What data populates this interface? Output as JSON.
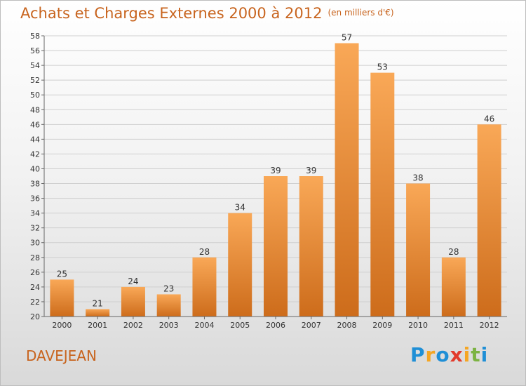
{
  "header": {
    "title": "Achats et Charges Externes 2000 à 2012",
    "subtitle": "(en milliers d'€)"
  },
  "commune": "DAVEJEAN",
  "logo": {
    "text": "Proxiti",
    "letters": [
      "P",
      "r",
      "o",
      "x",
      "i",
      "t",
      "i"
    ],
    "colors": [
      "#1f8fd6",
      "#f5a623",
      "#1f8fd6",
      "#e23a2b",
      "#f5a623",
      "#7cb342",
      "#1f8fd6"
    ]
  },
  "colors": {
    "accent": "#c8641e",
    "bar_top": "#f9a857",
    "bar_bottom": "#cd6c1b"
  },
  "chart_data": {
    "type": "bar",
    "title": "Achats et Charges Externes 2000 à 2012",
    "subtitle": "(en milliers d'€)",
    "categories": [
      "2000",
      "2001",
      "2002",
      "2003",
      "2004",
      "2005",
      "2006",
      "2007",
      "2008",
      "2009",
      "2010",
      "2011",
      "2012"
    ],
    "values": [
      25,
      21,
      24,
      23,
      28,
      34,
      39,
      39,
      57,
      53,
      38,
      28,
      46
    ],
    "ylim": [
      20,
      58
    ],
    "ytick_step": 2,
    "grid": true,
    "legend": "none"
  }
}
